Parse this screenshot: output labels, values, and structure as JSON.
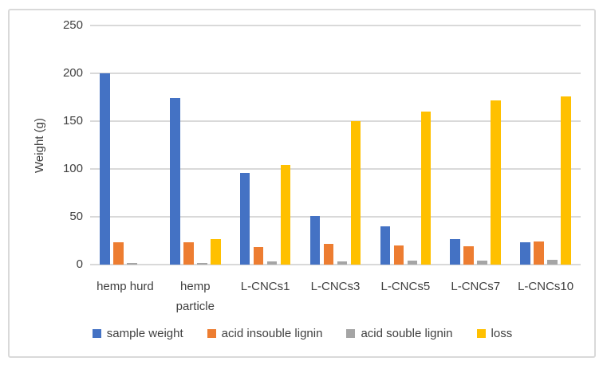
{
  "chart_data": {
    "type": "bar",
    "title": "",
    "xlabel": "",
    "ylabel": "Weight (g)",
    "ylim": [
      0,
      250
    ],
    "yticks": [
      0,
      50,
      100,
      150,
      200,
      250
    ],
    "grid": true,
    "legend_position": "bottom",
    "categories": [
      "hemp hurd",
      "hemp particle",
      "L-CNCs1",
      "L-CNCs3",
      "L-CNCs5",
      "L-CNCs7",
      "L-CNCs10"
    ],
    "series": [
      {
        "name": "sample weight",
        "color": "#4472C4",
        "values": [
          200,
          174,
          96,
          51,
          40,
          27,
          23
        ]
      },
      {
        "name": "acid insouble lignin",
        "color": "#ED7D31",
        "values": [
          23,
          23,
          18,
          22,
          20,
          19,
          24
        ]
      },
      {
        "name": "acid souble lignin",
        "color": "#A5A5A5",
        "values": [
          2,
          2,
          3,
          3,
          4,
          4,
          5
        ]
      },
      {
        "name": "loss",
        "color": "#FFC000",
        "values": [
          0,
          27,
          104,
          150,
          160,
          172,
          176
        ]
      }
    ]
  },
  "style": {
    "text_color": "#404040",
    "gridline_color": "#D9D9D9",
    "frame_border_color": "#D9D9D9",
    "background": "#FFFFFF"
  }
}
